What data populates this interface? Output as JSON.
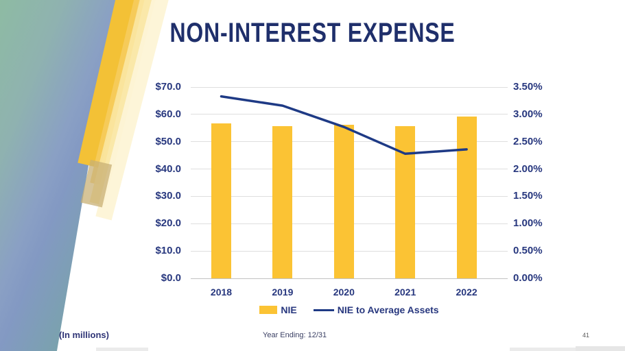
{
  "slide": {
    "title": "NON-INTEREST EXPENSE",
    "footnote_left": "(In millions)",
    "footnote_center": "Year Ending: 12/31",
    "page_number": "41"
  },
  "colors": {
    "bar": "#fbc334",
    "line": "#1e3a85",
    "axis_text": "#27377e",
    "title_text": "#1f2f6b"
  },
  "chart_data": {
    "type": "bar+line combo",
    "categories": [
      "2018",
      "2019",
      "2020",
      "2021",
      "2022"
    ],
    "series": [
      {
        "name": "NIE",
        "type": "bar",
        "axis": "left",
        "values": [
          56.8,
          55.7,
          56.1,
          55.7,
          59.3
        ]
      },
      {
        "name": "NIE to Average Assets",
        "type": "line",
        "axis": "right",
        "values": [
          3.33,
          3.16,
          2.77,
          2.28,
          2.36
        ]
      }
    ],
    "left_axis": {
      "title": "",
      "unit": "$ millions",
      "min": 0,
      "max": 70,
      "ticks": [
        "$70.0",
        "$60.0",
        "$50.0",
        "$40.0",
        "$30.0",
        "$20.0",
        "$10.0",
        "$0.0"
      ]
    },
    "right_axis": {
      "title": "",
      "unit": "percent",
      "min": 0,
      "max": 3.5,
      "ticks": [
        "3.50%",
        "3.00%",
        "2.50%",
        "2.00%",
        "1.50%",
        "1.00%",
        "0.50%",
        "0.00%"
      ]
    },
    "legend": [
      "NIE",
      "NIE to Average Assets"
    ],
    "legend_position": "bottom",
    "grid": true
  }
}
